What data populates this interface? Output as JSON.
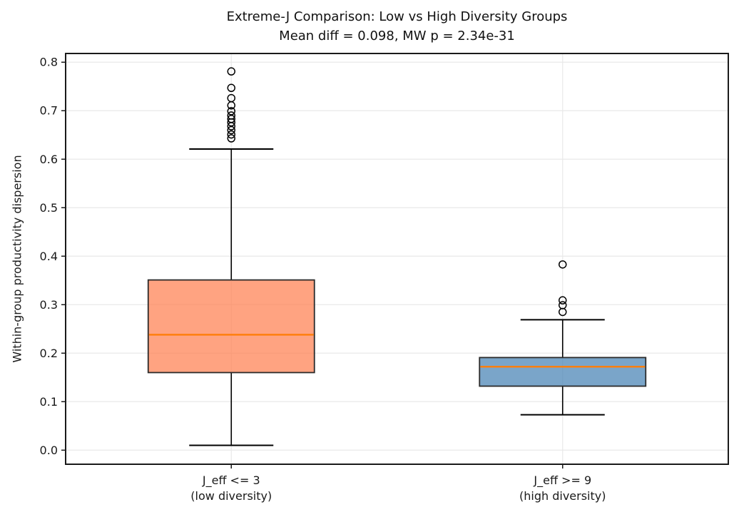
{
  "chart_data": {
    "type": "boxplot",
    "title": "Extreme-J Comparison: Low vs High Diversity Groups",
    "subtitle": "Mean diff = 0.098, MW p = 2.34e-31",
    "ylabel": "Within-group productivity dispersion",
    "ylim": [
      -0.029,
      0.818
    ],
    "yticks": [
      0.0,
      0.1,
      0.2,
      0.3,
      0.4,
      0.5,
      0.6,
      0.7,
      0.8
    ],
    "grid": true,
    "legend": false,
    "groups": [
      {
        "label": [
          "J_eff <= 3",
          "(low diversity)"
        ],
        "whisker_low": 0.01,
        "q1": 0.16,
        "median": 0.238,
        "q3": 0.351,
        "whisker_high": 0.621,
        "outliers": [
          0.643,
          0.651,
          0.66,
          0.668,
          0.676,
          0.683,
          0.69,
          0.699,
          0.711,
          0.726,
          0.747,
          0.781
        ],
        "fill_color": "rgba(255,127,80,0.72)"
      },
      {
        "label": [
          "J_eff >= 9",
          "(high diversity)"
        ],
        "whisker_low": 0.073,
        "q1": 0.132,
        "median": 0.172,
        "q3": 0.191,
        "whisker_high": 0.269,
        "outliers": [
          0.285,
          0.299,
          0.309,
          0.383
        ],
        "fill_color": "rgba(70,130,180,0.72)"
      }
    ],
    "colors": {
      "box_low": "#ff7f50",
      "box_high": "#4682b4",
      "median": "#ff7f0e",
      "edge": "#2b2b2b",
      "spine": "#1a1a1a",
      "whisker": "#000000",
      "grid": "#e9e9e9",
      "text": "#1a1a1a"
    }
  }
}
